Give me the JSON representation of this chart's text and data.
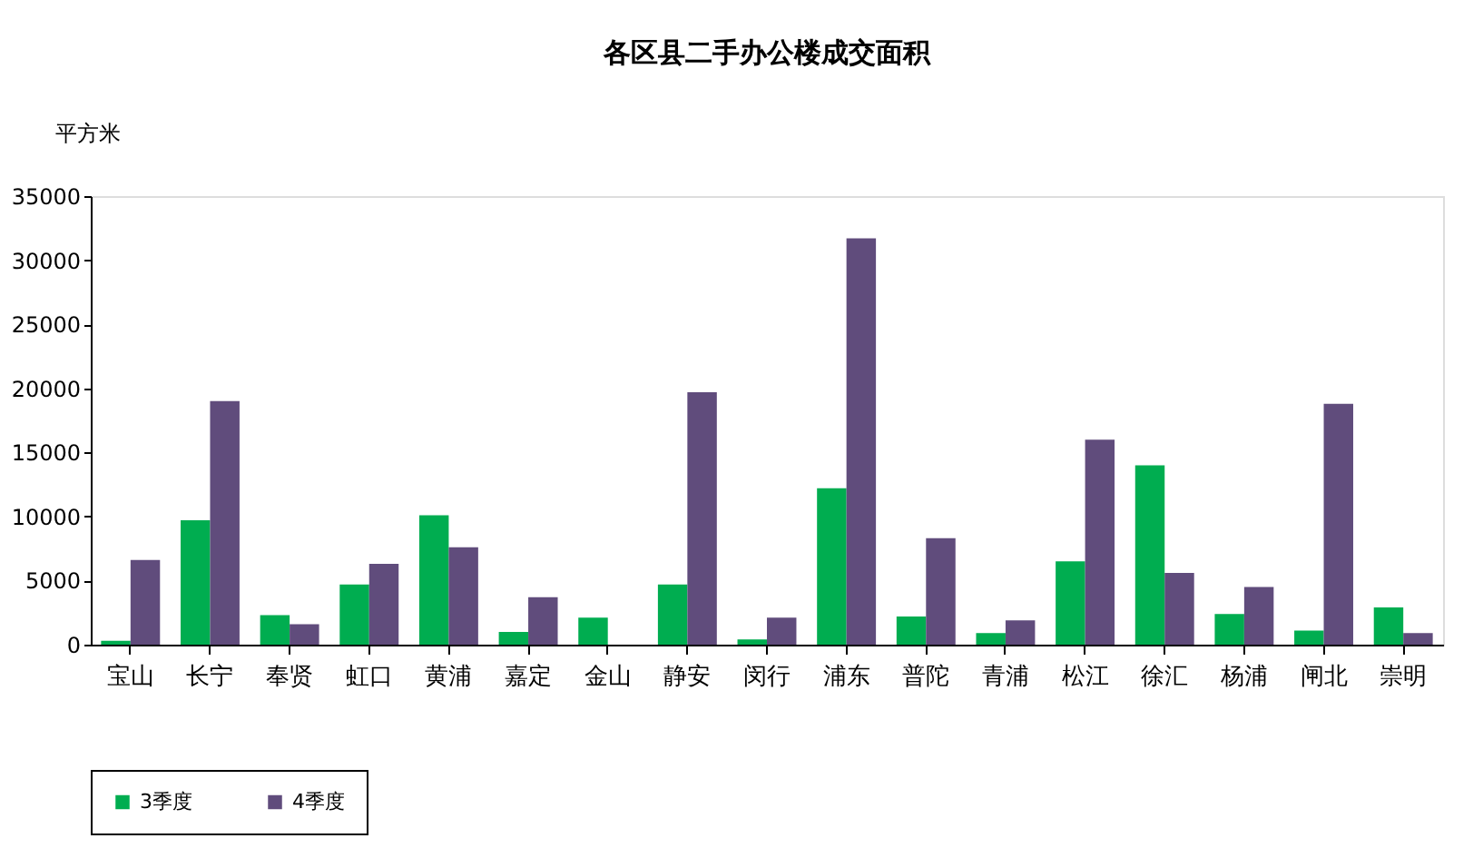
{
  "chart_data": {
    "type": "bar",
    "title": "各区县二手办公楼成交面积",
    "ylabel": "平方米",
    "categories": [
      "宝山",
      "长宁",
      "奉贤",
      "虹口",
      "黄浦",
      "嘉定",
      "金山",
      "静安",
      "闵行",
      "浦东",
      "普陀",
      "青浦",
      "松江",
      "徐汇",
      "杨浦",
      "闸北",
      "崇明"
    ],
    "series": [
      {
        "name": "3季度",
        "color": "#00ad50",
        "values": [
          300,
          9700,
          2300,
          4700,
          10100,
          1000,
          2100,
          4700,
          400,
          12200,
          2200,
          900,
          6500,
          14000,
          2400,
          1100,
          2900
        ]
      },
      {
        "name": "4季度",
        "color": "#604c7c",
        "values": [
          6600,
          19000,
          1600,
          6300,
          7600,
          3700,
          0,
          19700,
          2100,
          31700,
          8300,
          1900,
          16000,
          5600,
          4500,
          18800,
          900
        ]
      }
    ],
    "ylim": [
      0,
      35000
    ],
    "yticks": [
      0,
      5000,
      10000,
      15000,
      20000,
      25000,
      30000,
      35000
    ],
    "grid": false,
    "legend": "bottom"
  }
}
